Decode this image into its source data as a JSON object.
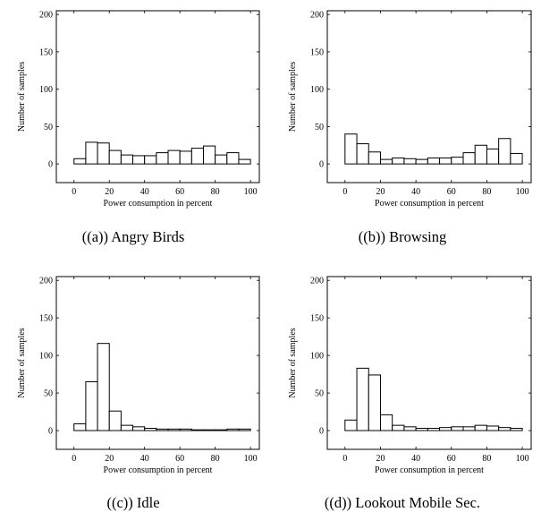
{
  "chart_data": [
    {
      "type": "bar",
      "caption": "((a)) Angry Birds",
      "xlabel": "Power consumption in percent",
      "ylabel": "Number of samples",
      "xlim": [
        -10,
        105
      ],
      "ylim": [
        -25,
        205
      ],
      "xticks": [
        0,
        20,
        40,
        60,
        80,
        100
      ],
      "yticks": [
        0,
        50,
        100,
        150,
        200
      ],
      "bin_width": 6.67,
      "bin_starts": [
        0,
        6.67,
        13.33,
        20,
        26.67,
        33.33,
        40,
        46.67,
        53.33,
        60,
        66.67,
        73.33,
        80,
        86.67,
        93.33
      ],
      "values": [
        7,
        29,
        28,
        18,
        12,
        11,
        11,
        15,
        18,
        17,
        21,
        24,
        12,
        15,
        6
      ]
    },
    {
      "type": "bar",
      "caption": "((b)) Browsing",
      "xlabel": "Power consumption in percent",
      "ylabel": "Number of samples",
      "xlim": [
        -10,
        105
      ],
      "ylim": [
        -25,
        205
      ],
      "xticks": [
        0,
        20,
        40,
        60,
        80,
        100
      ],
      "yticks": [
        0,
        50,
        100,
        150,
        200
      ],
      "bin_width": 6.67,
      "bin_starts": [
        0,
        6.67,
        13.33,
        20,
        26.67,
        33.33,
        40,
        46.67,
        53.33,
        60,
        66.67,
        73.33,
        80,
        86.67,
        93.33
      ],
      "values": [
        40,
        27,
        16,
        6,
        8,
        7,
        6,
        8,
        8,
        9,
        15,
        25,
        20,
        34,
        14
      ]
    },
    {
      "type": "bar",
      "caption": "((c)) Idle",
      "xlabel": "Power consumption in percent",
      "ylabel": "Number of samples",
      "xlim": [
        -10,
        105
      ],
      "ylim": [
        -25,
        205
      ],
      "xticks": [
        0,
        20,
        40,
        60,
        80,
        100
      ],
      "yticks": [
        0,
        50,
        100,
        150,
        200
      ],
      "bin_width": 6.67,
      "bin_starts": [
        0,
        6.67,
        13.33,
        20,
        26.67,
        33.33,
        40,
        46.67,
        53.33,
        60,
        66.67,
        73.33,
        80,
        86.67,
        93.33
      ],
      "values": [
        9,
        65,
        116,
        26,
        7,
        5,
        3,
        2,
        2,
        2,
        1,
        1,
        1,
        2,
        2
      ]
    },
    {
      "type": "bar",
      "caption": "((d)) Lookout Mobile Sec.",
      "xlabel": "Power consumption in percent",
      "ylabel": "Number of samples",
      "xlim": [
        -10,
        105
      ],
      "ylim": [
        -25,
        205
      ],
      "xticks": [
        0,
        20,
        40,
        60,
        80,
        100
      ],
      "yticks": [
        0,
        50,
        100,
        150,
        200
      ],
      "bin_width": 6.67,
      "bin_starts": [
        0,
        6.67,
        13.33,
        20,
        26.67,
        33.33,
        40,
        46.67,
        53.33,
        60,
        66.67,
        73.33,
        80,
        86.67,
        93.33
      ],
      "values": [
        14,
        83,
        74,
        21,
        7,
        5,
        3,
        3,
        4,
        5,
        5,
        7,
        6,
        4,
        3
      ]
    }
  ]
}
